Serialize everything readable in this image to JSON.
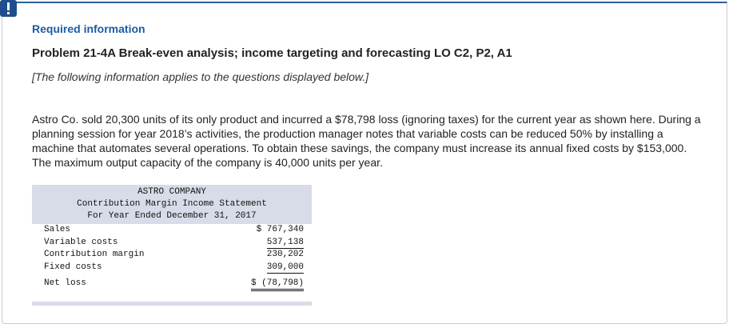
{
  "header": {
    "required": "Required information",
    "title": "Problem 21-4A Break-even analysis; income targeting and forecasting LO C2, P2, A1",
    "note": "[The following information applies to the questions displayed below.]"
  },
  "body": {
    "paragraph": "Astro Co. sold 20,300 units of its only product and incurred a $78,798 loss (ignoring taxes) for the current year as shown here. During a planning session for year 2018’s activities, the production manager notes that variable costs can be reduced 50% by installing a machine that automates several operations. To obtain these savings, the company must increase its annual fixed costs by $153,000. The maximum output capacity of the company is 40,000 units per year."
  },
  "table": {
    "company": "ASTRO COMPANY",
    "statement": "Contribution Margin Income Statement",
    "period": "For Year Ended December 31, 2017",
    "rows": [
      [
        "Sales",
        "$ 767,340"
      ],
      [
        "Variable costs",
        "537,138"
      ],
      [
        "Contribution margin",
        "230,202"
      ],
      [
        "Fixed costs",
        "309,000"
      ],
      [
        "Net loss",
        "$ (78,798)"
      ]
    ]
  }
}
